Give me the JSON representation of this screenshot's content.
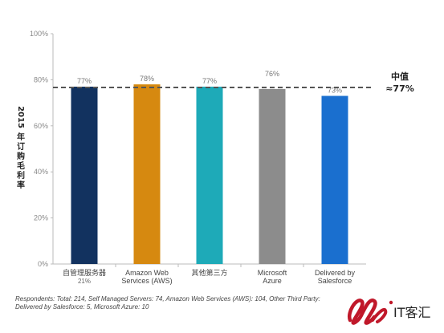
{
  "chart_data": {
    "type": "bar",
    "categories": [
      "自管理服务器",
      "Amazon Web Services (AWS)",
      "其他第三方",
      "Microsoft Azure",
      "Delivered by Salesforce"
    ],
    "category_sublabels": [
      "21%",
      "",
      "",
      "",
      ""
    ],
    "values": [
      77,
      78,
      77,
      76,
      73
    ],
    "data_labels": [
      "77%",
      "78%",
      "77%",
      "76%",
      "73%"
    ],
    "colors": [
      "#12325f",
      "#d68910",
      "#1eaab8",
      "#8c8c8c",
      "#1a6fcf"
    ],
    "ylabel": "2015年订购毛利率",
    "ylim": [
      0,
      100
    ],
    "yticks": [
      "0%",
      "20%",
      "40%",
      "60%",
      "80%",
      "100%"
    ],
    "median": {
      "value": 77,
      "label_line1": "中值",
      "label_line2": "≈77%"
    },
    "grid": false
  },
  "footnote": {
    "line1": "Respondents: Total: 214, Self Managed Servers: 74, Amazon Web Services (AWS): 104, Other Third Party:",
    "line2": "Delivered by Salesforce: 5, Microsoft Azure: 10"
  },
  "watermark": {
    "text": "IT客汇",
    "color": "#c0182a"
  }
}
